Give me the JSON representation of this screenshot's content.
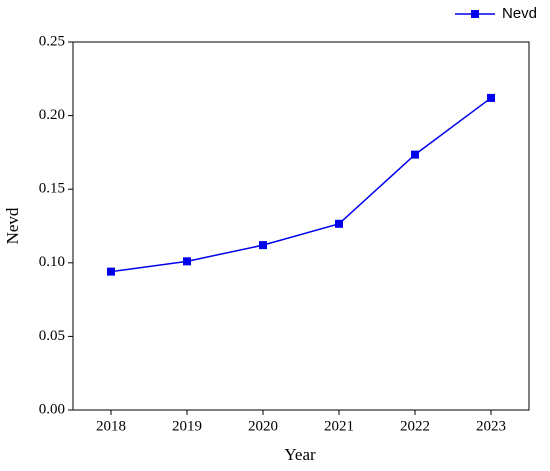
{
  "chart_data": {
    "type": "line",
    "x_label": "Year",
    "y_label": "Nevd",
    "x": [
      2018,
      2019,
      2020,
      2021,
      2022,
      2023
    ],
    "series": [
      {
        "name": "Nevd",
        "color": "#0000ee",
        "values": [
          0.094,
          0.101,
          0.112,
          0.1265,
          0.1735,
          0.212
        ]
      }
    ],
    "xlim": [
      2017.5,
      2023.5
    ],
    "xticks": [
      2018,
      2019,
      2020,
      2021,
      2022,
      2023
    ],
    "ylim": [
      0,
      0.25
    ],
    "yticks": [
      {
        "value": 0,
        "label": "0.00"
      },
      0.05,
      {
        "value": 0.1,
        "label": "0.10"
      },
      0.15,
      {
        "value": 0.2,
        "label": "0.20"
      },
      0.25
    ],
    "legend": "top-right",
    "grid": false
  }
}
